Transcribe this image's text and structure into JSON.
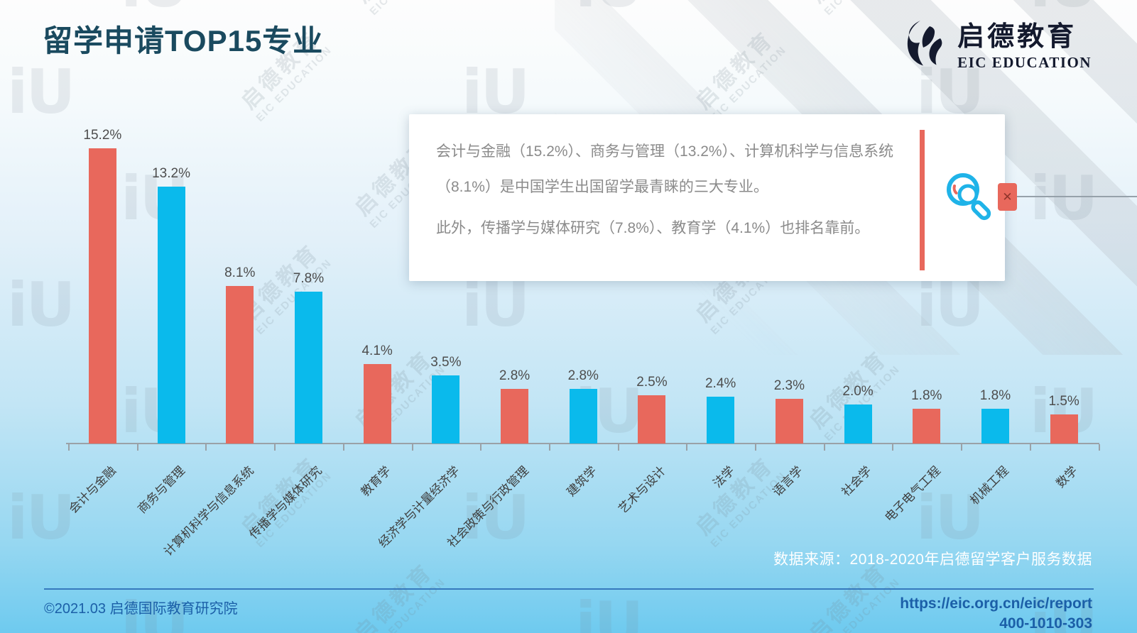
{
  "page": {
    "title": "留学申请TOP15专业",
    "logo": {
      "cn": "启德教育",
      "en": "EIC EDUCATION"
    }
  },
  "callout": {
    "paragraph1": "会计与金融（15.2%）、商务与管理（13.2%）、计算机科学与信息系统（8.1%）是中国学生出国留学最青睐的三大专业。",
    "paragraph2": "此外，传播学与媒体研究（7.8%）、教育学（4.1%）也排名靠前。"
  },
  "chart_data": {
    "type": "bar",
    "title": "留学申请TOP15专业",
    "categories": [
      "会计与金融",
      "商务与管理",
      "计算机科学与信息系统",
      "传播学与媒体研究",
      "教育学",
      "经济学与计量经济学",
      "社会政策与行政管理",
      "建筑学",
      "艺术与设计",
      "法学",
      "语言学",
      "社会学",
      "电子电气工程",
      "机械工程",
      "数学"
    ],
    "values": [
      15.2,
      13.2,
      8.1,
      7.8,
      4.1,
      3.5,
      2.8,
      2.8,
      2.5,
      2.4,
      2.3,
      2.0,
      1.8,
      1.8,
      1.5
    ],
    "labels": [
      "15.2%",
      "13.2%",
      "8.1%",
      "7.8%",
      "4.1%",
      "3.5%",
      "2.8%",
      "2.8%",
      "2.5%",
      "2.4%",
      "2.3%",
      "2.0%",
      "1.8%",
      "1.8%",
      "1.5%"
    ],
    "unit": "%",
    "xlabel": "",
    "ylabel": "",
    "ylim": [
      0,
      16
    ],
    "grid": false,
    "legend": "none",
    "bar_colors_alternating": [
      "#E8685C",
      "#0ABAEC"
    ]
  },
  "footer": {
    "source": "数据来源：2018-2020年启德留学客户服务数据",
    "copyright": "©2021.03 启德国际教育研究院",
    "url": "https://eic.org.cn/eic/report",
    "phone": "400-1010-303"
  },
  "watermark": {
    "cn": "启德教育",
    "en": "EIC EDUCATION",
    "glyph": "iU"
  },
  "colors": {
    "bar_red": "#E8685C",
    "bar_blue": "#0ABAEC",
    "title_text": "#1a4a5f",
    "footer_blue": "#1b5fa8",
    "magnifier_blue": "#1FB3E8",
    "card_text": "#8b8b8b"
  }
}
